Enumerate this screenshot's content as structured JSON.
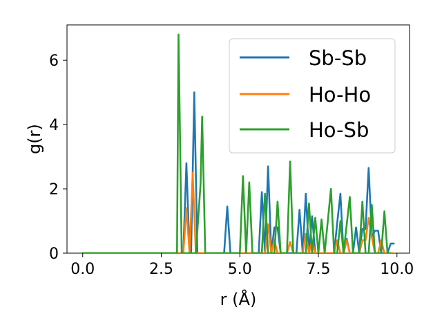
{
  "chart_data": {
    "type": "line",
    "title": "",
    "xlabel": "r (Å)",
    "ylabel": "g(r)",
    "xlim": [
      -0.5,
      10.4
    ],
    "ylim": [
      0,
      7.1
    ],
    "xticks": [
      0.0,
      2.5,
      5.0,
      7.5,
      10.0
    ],
    "xtick_labels": [
      "0.0",
      "2.5",
      "5.0",
      "7.5",
      "10.0"
    ],
    "yticks": [
      0,
      2,
      4,
      6
    ],
    "ytick_labels": [
      "0",
      "2",
      "4",
      "6"
    ],
    "grid": false,
    "legend_position": "top-right",
    "series": [
      {
        "name": "Sb-Sb",
        "color": "#1f77b4",
        "points": [
          [
            0,
            0
          ],
          [
            3.1,
            0
          ],
          [
            3.2,
            0
          ],
          [
            3.3,
            2.8
          ],
          [
            3.4,
            0
          ],
          [
            3.45,
            0
          ],
          [
            3.55,
            5.0
          ],
          [
            3.65,
            0
          ],
          [
            4.5,
            0
          ],
          [
            4.6,
            1.45
          ],
          [
            4.7,
            0
          ],
          [
            5.6,
            0
          ],
          [
            5.7,
            1.9
          ],
          [
            5.8,
            0
          ],
          [
            5.9,
            2.7
          ],
          [
            6.0,
            0
          ],
          [
            6.1,
            0.8
          ],
          [
            6.2,
            0.8
          ],
          [
            6.3,
            0
          ],
          [
            6.8,
            0
          ],
          [
            6.9,
            1.35
          ],
          [
            7.0,
            0
          ],
          [
            7.1,
            1.85
          ],
          [
            7.2,
            0
          ],
          [
            7.3,
            1.15
          ],
          [
            7.4,
            0
          ],
          [
            7.5,
            0
          ],
          [
            8.0,
            0
          ],
          [
            8.1,
            0.95
          ],
          [
            8.2,
            1.85
          ],
          [
            8.3,
            0
          ],
          [
            8.4,
            0.45
          ],
          [
            8.5,
            0
          ],
          [
            8.6,
            0
          ],
          [
            8.7,
            0.8
          ],
          [
            8.8,
            0
          ],
          [
            8.9,
            0.75
          ],
          [
            9.0,
            0.75
          ],
          [
            9.1,
            2.65
          ],
          [
            9.2,
            0.5
          ],
          [
            9.3,
            0.7
          ],
          [
            9.4,
            0.7
          ],
          [
            9.5,
            0
          ],
          [
            9.7,
            0
          ],
          [
            9.8,
            0.3
          ],
          [
            9.9,
            0.3
          ]
        ]
      },
      {
        "name": "Ho-Ho",
        "color": "#ff7f0e",
        "points": [
          [
            0,
            0
          ],
          [
            3.2,
            0
          ],
          [
            3.3,
            1.4
          ],
          [
            3.4,
            0
          ],
          [
            3.5,
            2.5
          ],
          [
            3.6,
            0
          ],
          [
            5.7,
            0
          ],
          [
            5.8,
            0
          ],
          [
            5.9,
            0.9
          ],
          [
            6.0,
            0
          ],
          [
            6.1,
            0.4
          ],
          [
            6.2,
            0
          ],
          [
            6.5,
            0
          ],
          [
            6.6,
            0.35
          ],
          [
            6.7,
            0
          ],
          [
            7.0,
            0
          ],
          [
            7.1,
            0.6
          ],
          [
            7.2,
            0
          ],
          [
            7.3,
            0.4
          ],
          [
            7.4,
            0
          ],
          [
            8.0,
            0
          ],
          [
            8.1,
            0.4
          ],
          [
            8.2,
            0
          ],
          [
            8.3,
            0
          ],
          [
            8.4,
            0.4
          ],
          [
            8.5,
            0
          ],
          [
            8.8,
            0
          ],
          [
            8.9,
            0.4
          ],
          [
            9.0,
            0.4
          ],
          [
            9.1,
            1.1
          ],
          [
            9.2,
            0.5
          ],
          [
            9.3,
            0
          ],
          [
            9.4,
            0
          ],
          [
            9.5,
            0.4
          ],
          [
            9.6,
            0
          ],
          [
            9.9,
            0
          ]
        ]
      },
      {
        "name": "Ho-Sb",
        "color": "#2ca02c",
        "points": [
          [
            0,
            0
          ],
          [
            2.9,
            0
          ],
          [
            3.0,
            0
          ],
          [
            3.05,
            6.8
          ],
          [
            3.15,
            0
          ],
          [
            3.6,
            0
          ],
          [
            3.75,
            2.15
          ],
          [
            3.8,
            4.25
          ],
          [
            3.9,
            0
          ],
          [
            4.0,
            0
          ],
          [
            5.0,
            0
          ],
          [
            5.1,
            2.4
          ],
          [
            5.2,
            0
          ],
          [
            5.3,
            2.2
          ],
          [
            5.4,
            0
          ],
          [
            5.7,
            0
          ],
          [
            5.8,
            1.85
          ],
          [
            5.9,
            0
          ],
          [
            6.1,
            0
          ],
          [
            6.2,
            1.6
          ],
          [
            6.3,
            0
          ],
          [
            6.5,
            0
          ],
          [
            6.6,
            2.85
          ],
          [
            6.7,
            0
          ],
          [
            7.1,
            0
          ],
          [
            7.2,
            1.55
          ],
          [
            7.3,
            0
          ],
          [
            7.4,
            1.1
          ],
          [
            7.5,
            0
          ],
          [
            7.6,
            1.05
          ],
          [
            7.7,
            0
          ],
          [
            7.9,
            2.0
          ],
          [
            8.0,
            0
          ],
          [
            8.1,
            0
          ],
          [
            8.2,
            1.0
          ],
          [
            8.3,
            0
          ],
          [
            8.5,
            1.75
          ],
          [
            8.6,
            0
          ],
          [
            8.8,
            0
          ],
          [
            8.9,
            1.6
          ],
          [
            9.0,
            0
          ],
          [
            9.1,
            0
          ],
          [
            9.2,
            1.5
          ],
          [
            9.3,
            0
          ],
          [
            9.5,
            0
          ],
          [
            9.6,
            1.3
          ],
          [
            9.7,
            0
          ],
          [
            9.8,
            0
          ]
        ]
      }
    ]
  }
}
